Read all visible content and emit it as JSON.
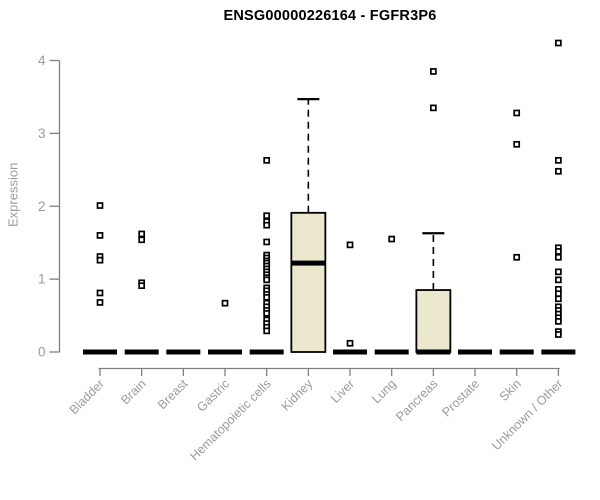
{
  "chart_data": {
    "type": "boxplot",
    "title": "ENSG00000226164 - FGFR3P6",
    "ylabel": "Expression",
    "xlabel": "",
    "ylim": [
      0,
      4.3
    ],
    "yticks": [
      0,
      1,
      2,
      3,
      4
    ],
    "grid": false,
    "legend": "none",
    "categories": [
      "Bladder",
      "Brain",
      "Breast",
      "Gastric",
      "Hematopoietic cells",
      "Kidney",
      "Liver",
      "Lung",
      "Pancreas",
      "Prostate",
      "Skin",
      "Unknown / Other"
    ],
    "boxes": [
      {
        "category": "Bladder",
        "q1": 0,
        "median": 0,
        "q3": 0,
        "whisker_low": 0,
        "whisker_high": 0,
        "outliers": [
          2.01,
          1.6,
          1.31,
          1.26,
          0.81,
          0.68
        ]
      },
      {
        "category": "Brain",
        "q1": 0,
        "median": 0,
        "q3": 0,
        "whisker_low": 0,
        "whisker_high": 0,
        "outliers": [
          1.62,
          1.54,
          0.95,
          0.91
        ]
      },
      {
        "category": "Breast",
        "q1": 0,
        "median": 0,
        "q3": 0,
        "whisker_low": 0,
        "whisker_high": 0,
        "outliers": []
      },
      {
        "category": "Gastric",
        "q1": 0,
        "median": 0,
        "q3": 0,
        "whisker_low": 0,
        "whisker_high": 0,
        "outliers": [
          0.67
        ]
      },
      {
        "category": "Hematopoietic cells",
        "q1": 0,
        "median": 0,
        "q3": 0,
        "whisker_low": 0,
        "whisker_high": 0,
        "outliers": [
          2.63,
          1.87,
          1.79,
          1.74,
          1.51,
          1.33,
          1.29,
          1.25,
          1.22,
          1.18,
          1.14,
          1.1,
          1.06,
          1.02,
          0.99,
          0.88,
          0.84,
          0.79,
          0.75,
          0.67,
          0.62,
          0.57,
          0.53,
          0.44,
          0.39,
          0.34,
          0.29
        ]
      },
      {
        "category": "Kidney",
        "q1": 0,
        "median": 1.22,
        "q3": 1.91,
        "whisker_low": 0,
        "whisker_high": 3.47,
        "outliers": []
      },
      {
        "category": "Liver",
        "q1": 0,
        "median": 0,
        "q3": 0,
        "whisker_low": 0,
        "whisker_high": 0,
        "outliers": [
          1.47,
          0.12
        ]
      },
      {
        "category": "Lung",
        "q1": 0,
        "median": 0,
        "q3": 0,
        "whisker_low": 0,
        "whisker_high": 0,
        "outliers": [
          1.55
        ]
      },
      {
        "category": "Pancreas",
        "q1": 0,
        "median": 0,
        "q3": 0.85,
        "whisker_low": 0,
        "whisker_high": 1.63,
        "outliers": [
          3.85,
          3.35
        ]
      },
      {
        "category": "Prostate",
        "q1": 0,
        "median": 0,
        "q3": 0,
        "whisker_low": 0,
        "whisker_high": 0,
        "outliers": []
      },
      {
        "category": "Skin",
        "q1": 0,
        "median": 0,
        "q3": 0,
        "whisker_low": 0,
        "whisker_high": 0,
        "outliers": [
          3.28,
          2.85,
          1.3
        ]
      },
      {
        "category": "Unknown / Other",
        "q1": 0,
        "median": 0,
        "q3": 0,
        "whisker_low": 0,
        "whisker_high": 0,
        "outliers": [
          4.24,
          2.63,
          2.48,
          1.43,
          1.38,
          1.3,
          1.1,
          0.99,
          0.86,
          0.8,
          0.73,
          0.62,
          0.57,
          0.52,
          0.47,
          0.42,
          0.28,
          0.24
        ]
      }
    ],
    "colors": {
      "box_fill": "#ece8cd",
      "box_border": "#000000",
      "median": "#000000",
      "whisker": "#000000",
      "outlier": "#000000",
      "axis_line": "#808080",
      "tick_label": "#9b9b9b",
      "title": "#000000",
      "background": "#ffffff"
    }
  }
}
